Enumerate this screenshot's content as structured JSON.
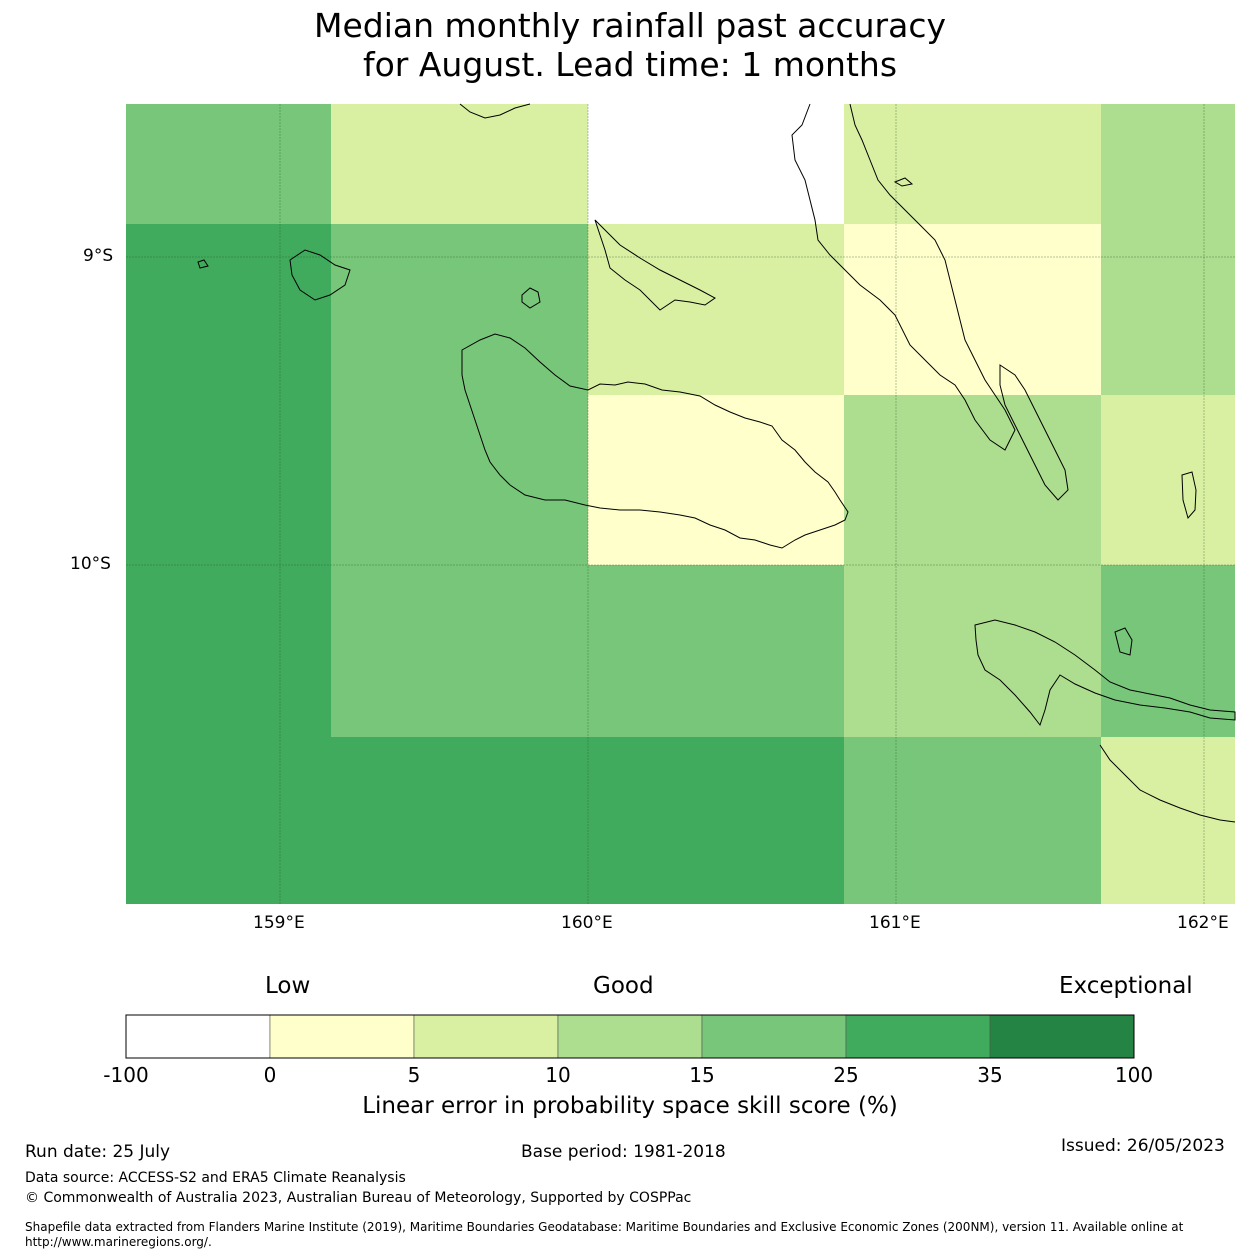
{
  "title": {
    "line1": "Median monthly rainfall past accuracy",
    "line2": "for August. Lead time: 1 months"
  },
  "map": {
    "lat_labels": [
      "9°S",
      "10°S"
    ],
    "lon_labels": [
      "159°E",
      "160°E",
      "161°E",
      "162°E"
    ],
    "extent": {
      "lon_min": 158.5,
      "lon_max": 162.1,
      "lat_min": -11.1,
      "lat_max": -8.5
    },
    "grid_cells": [
      {
        "row": 0,
        "col": 0,
        "category": 15
      },
      {
        "row": 0,
        "col": 1,
        "category": 5
      },
      {
        "row": 0,
        "col": 2,
        "category": -100
      },
      {
        "row": 0,
        "col": 3,
        "category": 5
      },
      {
        "row": 0,
        "col": 4,
        "category": 10
      },
      {
        "row": 1,
        "col": 0,
        "category": 25
      },
      {
        "row": 1,
        "col": 1,
        "category": 15
      },
      {
        "row": 1,
        "col": 2,
        "category": 5
      },
      {
        "row": 1,
        "col": 3,
        "category": 0
      },
      {
        "row": 1,
        "col": 4,
        "category": 10
      },
      {
        "row": 2,
        "col": 0,
        "category": 25
      },
      {
        "row": 2,
        "col": 1,
        "category": 15
      },
      {
        "row": 2,
        "col": 2,
        "category": 0
      },
      {
        "row": 2,
        "col": 3,
        "category": 10
      },
      {
        "row": 2,
        "col": 4,
        "category": 5
      },
      {
        "row": 3,
        "col": 0,
        "category": 25
      },
      {
        "row": 3,
        "col": 1,
        "category": 15
      },
      {
        "row": 3,
        "col": 2,
        "category": 15
      },
      {
        "row": 3,
        "col": 3,
        "category": 10
      },
      {
        "row": 3,
        "col": 4,
        "category": 15
      },
      {
        "row": 4,
        "col": 0,
        "category": 25
      },
      {
        "row": 4,
        "col": 1,
        "category": 25
      },
      {
        "row": 4,
        "col": 2,
        "category": 25
      },
      {
        "row": 4,
        "col": 3,
        "category": 15
      },
      {
        "row": 4,
        "col": 4,
        "category": 5
      }
    ]
  },
  "legend": {
    "categories": [
      "Low",
      "Good",
      "Exceptional"
    ],
    "ticks": [
      "-100",
      "0",
      "5",
      "10",
      "15",
      "25",
      "35",
      "100"
    ],
    "colors": [
      "#ffffff",
      "#ffffcc",
      "#d9f0a3",
      "#addd8e",
      "#78c679",
      "#41ab5d",
      "#238443"
    ],
    "label": "Linear error in probability space skill score (%)"
  },
  "footer": {
    "run_date": "Run date: 25 July",
    "base_period": "Base period: 1981-2018",
    "issued": "Issued: 26/05/2023",
    "data_source": "Data source: ACCESS-S2 and ERA5 Climate Reanalysis",
    "copyright": "© Commonwealth of Australia 2023, Australian Bureau of Meteorology, Supported by COSPPac",
    "shapefile": "Shapefile data extracted from Flanders Marine Institute (2019), Maritime Boundaries Geodatabase: Maritime Boundaries and Exclusive Economic Zones (200NM), version 11. Available online at http://www.marineregions.org/."
  }
}
